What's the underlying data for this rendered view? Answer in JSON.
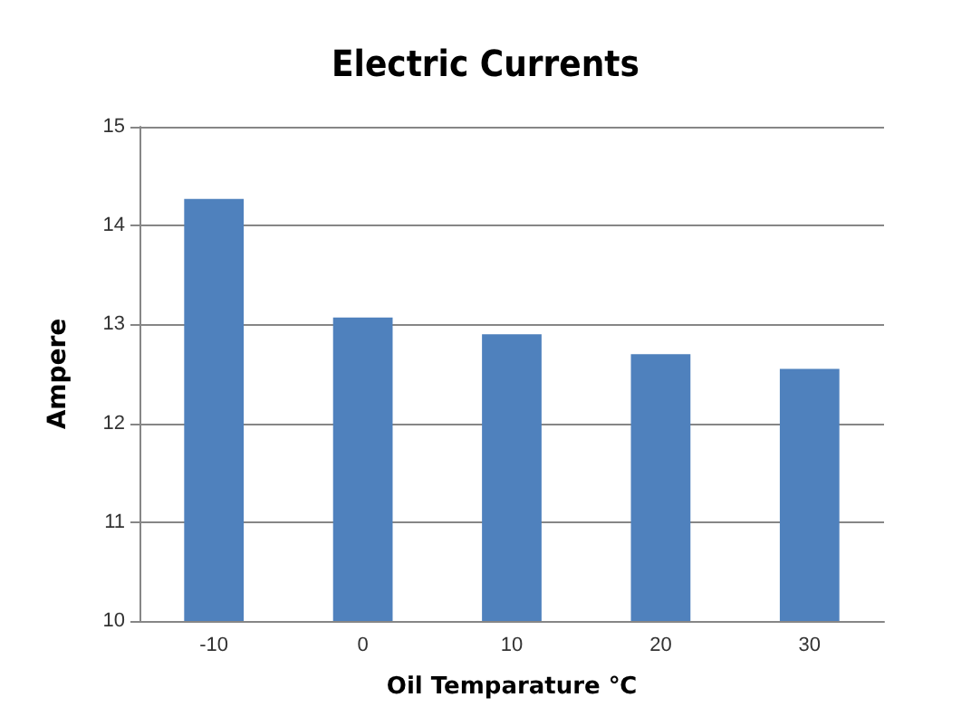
{
  "chart_data": {
    "type": "bar",
    "title": "Electric Currents",
    "xlabel": "Oil Temparature ℃",
    "ylabel": "Ampere",
    "categories": [
      "-10",
      "0",
      "10",
      "20",
      "30"
    ],
    "values": [
      14.27,
      13.07,
      12.9,
      12.7,
      12.55
    ],
    "color": "#4f81bd",
    "ylim": [
      10,
      15
    ],
    "yticks": [
      10,
      11,
      12,
      13,
      14,
      15
    ],
    "grid": true
  }
}
